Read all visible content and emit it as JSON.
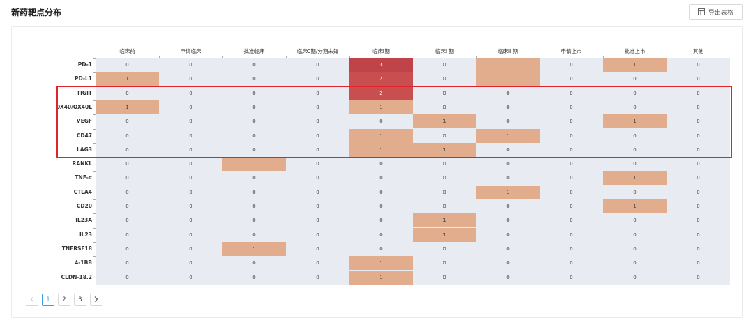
{
  "header": {
    "title": "新药靶点分布",
    "export_label": "导出表格",
    "export_icon": "spreadsheet-icon"
  },
  "chart_data": {
    "type": "heatmap",
    "title": "新药靶点分布",
    "columns": [
      "临床前",
      "申请临床",
      "批准临床",
      "临床0期/分期未知",
      "临床I期",
      "临床II期",
      "临床III期",
      "申请上市",
      "批准上市",
      "其他"
    ],
    "rows": [
      "PD-1",
      "PD-L1",
      "TIGIT",
      "OX40/OX40L",
      "VEGF",
      "CD47",
      "LAG3",
      "RANKL",
      "TNF-α",
      "CTLA4",
      "CD20",
      "IL23A",
      "IL23",
      "TNFRSF18",
      "4-1BB",
      "CLDN-18.2"
    ],
    "values": [
      [
        0,
        0,
        0,
        0,
        3,
        0,
        1,
        0,
        1,
        0
      ],
      [
        1,
        0,
        0,
        0,
        2,
        0,
        1,
        0,
        0,
        0
      ],
      [
        0,
        0,
        0,
        0,
        2,
        0,
        0,
        0,
        0,
        0
      ],
      [
        1,
        0,
        0,
        0,
        1,
        0,
        0,
        0,
        0,
        0
      ],
      [
        0,
        0,
        0,
        0,
        0,
        1,
        0,
        0,
        1,
        0
      ],
      [
        0,
        0,
        0,
        0,
        1,
        0,
        1,
        0,
        0,
        0
      ],
      [
        0,
        0,
        0,
        0,
        1,
        1,
        0,
        0,
        0,
        0
      ],
      [
        0,
        0,
        1,
        0,
        0,
        0,
        0,
        0,
        0,
        0
      ],
      [
        0,
        0,
        0,
        0,
        0,
        0,
        0,
        0,
        1,
        0
      ],
      [
        0,
        0,
        0,
        0,
        0,
        0,
        1,
        0,
        0,
        0
      ],
      [
        0,
        0,
        0,
        0,
        0,
        0,
        0,
        0,
        1,
        0
      ],
      [
        0,
        0,
        0,
        0,
        0,
        1,
        0,
        0,
        0,
        0
      ],
      [
        0,
        0,
        0,
        0,
        0,
        1,
        0,
        0,
        0,
        0
      ],
      [
        0,
        0,
        1,
        0,
        0,
        0,
        0,
        0,
        0,
        0
      ],
      [
        0,
        0,
        0,
        0,
        1,
        0,
        0,
        0,
        0,
        0
      ],
      [
        0,
        0,
        0,
        0,
        1,
        0,
        0,
        0,
        0,
        0
      ]
    ],
    "color_scale": {
      "0": "#e8ebf2",
      "1": "#e2ad8d",
      "2": "#c94e50",
      "3": "#c0434a"
    },
    "highlighted_rows": [
      "TIGIT",
      "OX40/OX40L",
      "VEGF",
      "CD47",
      "LAG3"
    ],
    "highlight_color": "#e0242b"
  },
  "pagination": {
    "prev_icon": "chevron-left-icon",
    "next_icon": "chevron-right-icon",
    "pages": [
      "1",
      "2",
      "3"
    ],
    "current": "1"
  }
}
